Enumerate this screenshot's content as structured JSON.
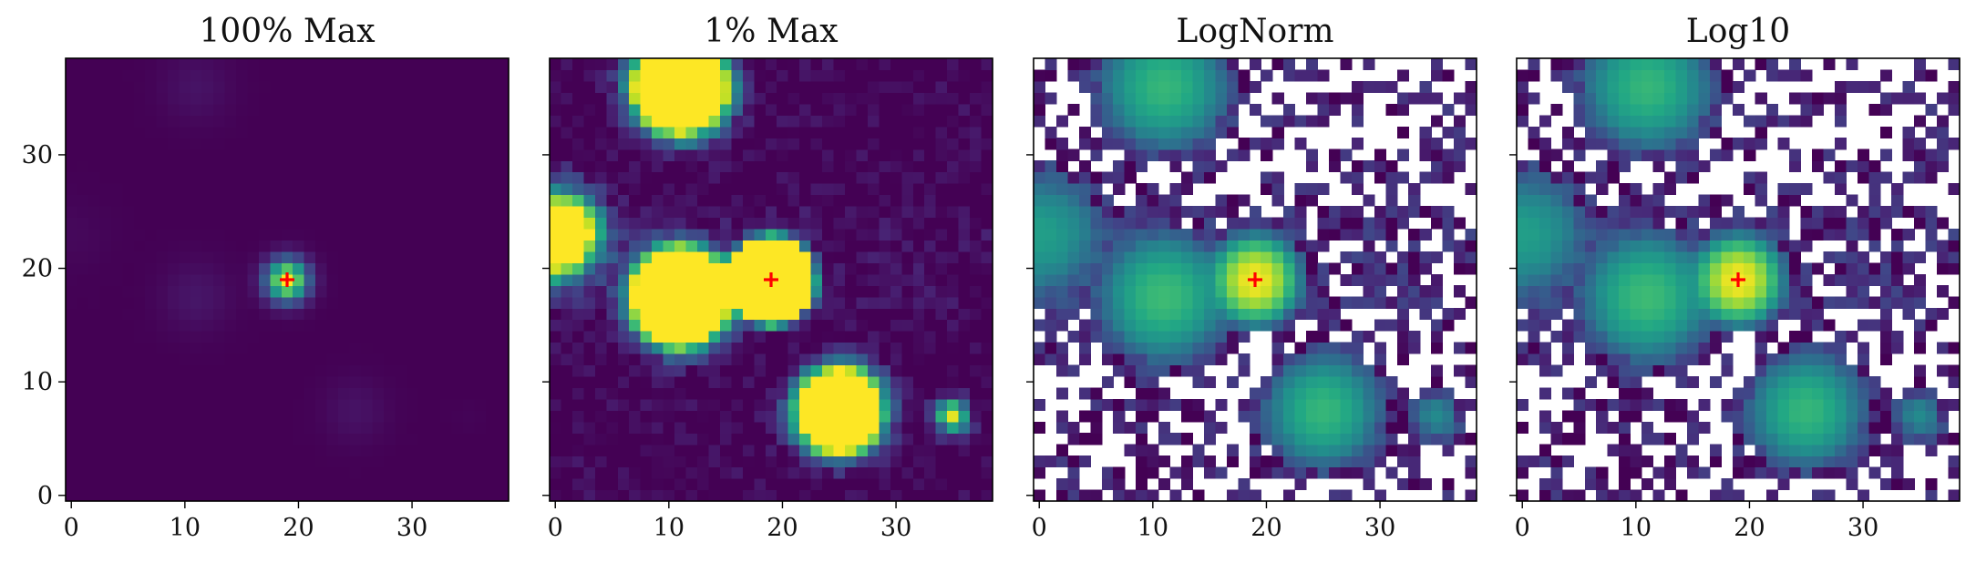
{
  "chart_data": [
    {
      "type": "heatmap",
      "title": "100% Max",
      "scale": "linear, vmax = 100% of peak",
      "colormap": "viridis",
      "xlim": [
        -0.5,
        38.5
      ],
      "ylim": [
        -0.5,
        38.5
      ],
      "x_ticks": [
        0,
        10,
        20,
        30
      ],
      "y_ticks": [
        0,
        10,
        20,
        30
      ],
      "y_tick_labels_shown": true,
      "grid": false,
      "marker": {
        "symbol": "+",
        "color": "#ff0000",
        "x": 19,
        "y": 19
      },
      "sources": [
        {
          "x": 19,
          "y": 19,
          "amplitude": 1.0
        },
        {
          "x": 11,
          "y": 17.5,
          "amplitude": 0.06
        },
        {
          "x": 25,
          "y": 7.5,
          "amplitude": 0.05
        },
        {
          "x": 11,
          "y": 36,
          "amplitude": 0.05
        },
        {
          "x": 0,
          "y": 23,
          "amplitude": 0.02
        },
        {
          "x": 35,
          "y": 7,
          "amplitude": 0.01
        }
      ]
    },
    {
      "type": "heatmap",
      "title": "1% Max",
      "scale": "linear, vmax = 1% of peak",
      "colormap": "viridis",
      "xlim": [
        -0.5,
        38.5
      ],
      "ylim": [
        -0.5,
        38.5
      ],
      "x_ticks": [
        0,
        10,
        20,
        30
      ],
      "y_ticks": [
        0,
        10,
        20,
        30
      ],
      "y_tick_labels_shown": false,
      "grid": false,
      "marker": {
        "symbol": "+",
        "color": "#ff0000",
        "x": 19,
        "y": 19
      }
    },
    {
      "type": "heatmap",
      "title": "LogNorm",
      "scale": "log norm (non-positive pixels blank)",
      "colormap": "viridis",
      "xlim": [
        -0.5,
        38.5
      ],
      "ylim": [
        -0.5,
        38.5
      ],
      "x_ticks": [
        0,
        10,
        20,
        30
      ],
      "y_ticks": [
        0,
        10,
        20,
        30
      ],
      "y_tick_labels_shown": false,
      "grid": false,
      "marker": {
        "symbol": "+",
        "color": "#ff0000",
        "x": 19,
        "y": 19
      },
      "outlier_pixel": {
        "x": 31,
        "y": 8,
        "color": "#440154"
      }
    },
    {
      "type": "heatmap",
      "title": "Log10",
      "scale": "log10 (non-positive pixels blank)",
      "colormap": "viridis",
      "xlim": [
        -0.5,
        38.5
      ],
      "ylim": [
        -0.5,
        38.5
      ],
      "x_ticks": [
        0,
        10,
        20,
        30
      ],
      "y_ticks": [
        0,
        10,
        20,
        30
      ],
      "y_tick_labels_shown": false,
      "grid": false,
      "marker": {
        "symbol": "+",
        "color": "#ff0000",
        "x": 19,
        "y": 19
      },
      "outlier_pixel": {
        "x": 31,
        "y": 8,
        "color": "#440154"
      }
    }
  ]
}
